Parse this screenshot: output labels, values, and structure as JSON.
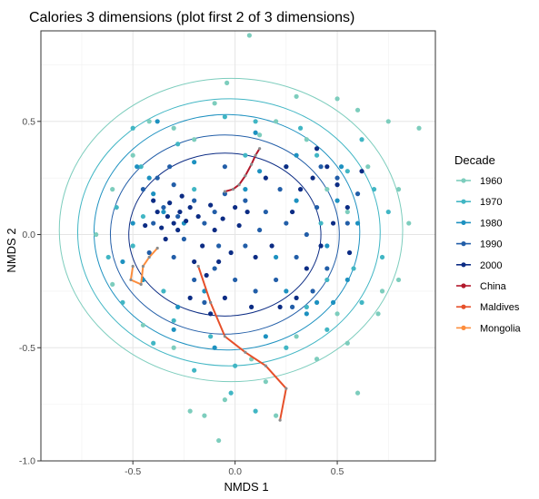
{
  "chart_data": {
    "type": "scatter",
    "title": "Calories 3 dimensions (plot first 2 of 3 dimensions)",
    "xlabel": "NMDS 1",
    "ylabel": "NMDS 2",
    "xlim": [
      -0.95,
      0.98
    ],
    "ylim": [
      -1.0,
      0.9
    ],
    "x_ticks": [
      -0.5,
      0.0,
      0.5
    ],
    "x_tick_labels": [
      "-0.5",
      "0.0",
      "0.5"
    ],
    "y_ticks": [
      -1.0,
      -0.5,
      0.0,
      0.5
    ],
    "y_tick_labels": [
      "-1.0",
      "-0.5",
      "0.0",
      "0.5"
    ],
    "grid": true,
    "legend": {
      "title": "Decade",
      "placement": "right",
      "entries": [
        {
          "label": "1960",
          "color": "#7dcdbd"
        },
        {
          "label": "1970",
          "color": "#41b6c4"
        },
        {
          "label": "1980",
          "color": "#1d91c0"
        },
        {
          "label": "1990",
          "color": "#225ea8"
        },
        {
          "label": "2000",
          "color": "#0c2c84"
        },
        {
          "label": "China",
          "color": "#b2182b"
        },
        {
          "label": "Maldives",
          "color": "#e6502a"
        },
        {
          "label": "Mongolia",
          "color": "#fd8d3c"
        }
      ]
    },
    "ellipses": [
      {
        "decade": "1960",
        "color": "#7dcdbd",
        "cx": -0.02,
        "cy": 0.02,
        "rx": 0.84,
        "ry": 0.67
      },
      {
        "decade": "1970",
        "color": "#41b6c4",
        "cx": -0.03,
        "cy": 0.01,
        "rx": 0.74,
        "ry": 0.59
      },
      {
        "decade": "1980",
        "color": "#1d91c0",
        "cx": -0.04,
        "cy": 0.01,
        "rx": 0.65,
        "ry": 0.52
      },
      {
        "decade": "1990",
        "color": "#225ea8",
        "cx": -0.05,
        "cy": 0.0,
        "rx": 0.56,
        "ry": 0.44
      },
      {
        "decade": "2000",
        "color": "#0c2c84",
        "cx": -0.05,
        "cy": 0.0,
        "rx": 0.47,
        "ry": 0.36
      }
    ],
    "series": [
      {
        "name": "1960",
        "color": "#7dcdbd",
        "points": [
          [
            0.07,
            0.88
          ],
          [
            -0.04,
            0.67
          ],
          [
            0.3,
            0.61
          ],
          [
            0.5,
            0.6
          ],
          [
            0.75,
            0.5
          ],
          [
            0.9,
            0.47
          ],
          [
            0.6,
            0.55
          ],
          [
            -0.1,
            0.58
          ],
          [
            0.2,
            0.5
          ],
          [
            -0.3,
            0.47
          ],
          [
            0.35,
            0.42
          ],
          [
            0.65,
            0.3
          ],
          [
            0.8,
            0.2
          ],
          [
            0.85,
            0.05
          ],
          [
            0.8,
            -0.2
          ],
          [
            0.7,
            -0.35
          ],
          [
            0.55,
            -0.48
          ],
          [
            0.4,
            -0.55
          ],
          [
            0.15,
            -0.65
          ],
          [
            -0.05,
            -0.73
          ],
          [
            -0.15,
            -0.8
          ],
          [
            -0.08,
            -0.91
          ],
          [
            -0.22,
            -0.78
          ],
          [
            0.6,
            -0.7
          ],
          [
            -0.5,
            0.35
          ],
          [
            -0.6,
            0.2
          ],
          [
            -0.68,
            0.0
          ],
          [
            -0.6,
            -0.22
          ],
          [
            -0.45,
            -0.4
          ],
          [
            -0.3,
            -0.5
          ],
          [
            0.08,
            -0.55
          ],
          [
            0.3,
            -0.45
          ],
          [
            0.5,
            -0.35
          ],
          [
            -0.42,
            0.5
          ],
          [
            0.2,
            -0.8
          ],
          [
            0.45,
            0.2
          ],
          [
            0.55,
            0.1
          ],
          [
            -0.2,
            0.42
          ],
          [
            0.12,
            0.44
          ],
          [
            0.72,
            -0.25
          ]
        ]
      },
      {
        "name": "1970",
        "color": "#41b6c4",
        "points": [
          [
            -0.5,
            0.47
          ],
          [
            -0.05,
            0.52
          ],
          [
            0.1,
            0.5
          ],
          [
            0.32,
            0.47
          ],
          [
            0.62,
            0.42
          ],
          [
            0.68,
            0.2
          ],
          [
            0.75,
            0.1
          ],
          [
            0.72,
            -0.1
          ],
          [
            0.62,
            -0.3
          ],
          [
            0.45,
            -0.42
          ],
          [
            0.25,
            -0.5
          ],
          [
            0.0,
            -0.58
          ],
          [
            -0.2,
            -0.6
          ],
          [
            -0.4,
            -0.48
          ],
          [
            -0.55,
            -0.3
          ],
          [
            -0.62,
            -0.1
          ],
          [
            -0.58,
            0.12
          ],
          [
            -0.46,
            0.3
          ],
          [
            -0.28,
            0.4
          ],
          [
            0.1,
            -0.78
          ],
          [
            -0.02,
            -0.7
          ],
          [
            0.4,
            0.35
          ],
          [
            0.55,
            0.28
          ],
          [
            0.58,
            -0.15
          ],
          [
            0.35,
            -0.32
          ],
          [
            -0.12,
            -0.45
          ],
          [
            -0.35,
            -0.25
          ],
          [
            -0.45,
            0.08
          ],
          [
            0.05,
            0.35
          ],
          [
            0.25,
            0.3
          ],
          [
            -0.2,
            0.2
          ],
          [
            0.42,
            0.05
          ],
          [
            0.45,
            -0.2
          ],
          [
            -0.3,
            -0.38
          ],
          [
            -0.5,
            -0.05
          ]
        ]
      },
      {
        "name": "1980",
        "color": "#1d91c0",
        "points": [
          [
            -0.38,
            0.5
          ],
          [
            0.1,
            0.45
          ],
          [
            0.3,
            0.35
          ],
          [
            0.52,
            0.3
          ],
          [
            0.6,
            0.05
          ],
          [
            0.55,
            -0.2
          ],
          [
            0.4,
            -0.3
          ],
          [
            0.15,
            -0.45
          ],
          [
            -0.1,
            -0.5
          ],
          [
            -0.3,
            -0.42
          ],
          [
            -0.45,
            -0.2
          ],
          [
            -0.5,
            0.05
          ],
          [
            -0.42,
            0.25
          ],
          [
            -0.2,
            0.32
          ],
          [
            0.3,
            0.15
          ],
          [
            0.45,
            -0.05
          ],
          [
            -0.25,
            0.05
          ],
          [
            -0.35,
            0.1
          ],
          [
            0.2,
            -0.1
          ],
          [
            0.35,
            -0.35
          ],
          [
            -0.15,
            -0.25
          ],
          [
            -0.4,
            0.18
          ],
          [
            0.05,
            0.2
          ],
          [
            0.25,
            -0.25
          ],
          [
            0.5,
            0.15
          ],
          [
            -0.55,
            -0.12
          ],
          [
            -0.28,
            -0.32
          ],
          [
            0.12,
            0.28
          ],
          [
            0.48,
            -0.3
          ],
          [
            -0.48,
            0.3
          ]
        ]
      },
      {
        "name": "1990",
        "color": "#225ea8",
        "points": [
          [
            -0.3,
            0.22
          ],
          [
            -0.35,
            0.12
          ],
          [
            -0.4,
            0.05
          ],
          [
            -0.28,
            0.08
          ],
          [
            -0.2,
            0.15
          ],
          [
            -0.15,
            0.05
          ],
          [
            -0.1,
            0.1
          ],
          [
            -0.05,
            0.18
          ],
          [
            0.05,
            0.15
          ],
          [
            0.15,
            0.1
          ],
          [
            0.25,
            0.05
          ],
          [
            0.35,
            0.0
          ],
          [
            0.4,
            0.12
          ],
          [
            0.3,
            -0.1
          ],
          [
            0.2,
            -0.2
          ],
          [
            0.1,
            -0.25
          ],
          [
            0.0,
            -0.2
          ],
          [
            -0.1,
            -0.15
          ],
          [
            -0.2,
            -0.2
          ],
          [
            -0.3,
            -0.1
          ],
          [
            -0.25,
            -0.02
          ],
          [
            -0.45,
            0.2
          ],
          [
            -0.38,
            0.25
          ],
          [
            0.5,
            0.25
          ],
          [
            0.55,
            0.05
          ],
          [
            0.45,
            -0.15
          ],
          [
            0.38,
            -0.25
          ],
          [
            -0.15,
            -0.3
          ],
          [
            0.05,
            -0.05
          ],
          [
            0.12,
            0.02
          ],
          [
            -0.08,
            -0.05
          ],
          [
            0.22,
            0.2
          ],
          [
            -0.32,
            0.3
          ],
          [
            0.28,
            -0.32
          ],
          [
            -0.05,
            0.3
          ],
          [
            0.42,
            0.3
          ],
          [
            0.6,
            0.18
          ],
          [
            -0.42,
            -0.08
          ]
        ]
      },
      {
        "name": "2000",
        "color": "#0c2c84",
        "points": [
          [
            -0.38,
            0.1
          ],
          [
            -0.33,
            0.08
          ],
          [
            -0.3,
            0.05
          ],
          [
            -0.27,
            0.1
          ],
          [
            -0.24,
            0.06
          ],
          [
            -0.36,
            0.03
          ],
          [
            -0.32,
            0.14
          ],
          [
            -0.28,
            0.02
          ],
          [
            -0.22,
            0.12
          ],
          [
            -0.18,
            0.08
          ],
          [
            -0.4,
            0.15
          ],
          [
            -0.26,
            0.17
          ],
          [
            -0.34,
            -0.02
          ],
          [
            -0.12,
            0.13
          ],
          [
            -0.06,
            0.07
          ],
          [
            0.0,
            0.12
          ],
          [
            0.06,
            0.1
          ],
          [
            -0.1,
            0.02
          ],
          [
            0.02,
            0.04
          ],
          [
            -0.02,
            -0.08
          ],
          [
            -0.08,
            -0.12
          ],
          [
            -0.14,
            -0.18
          ],
          [
            -0.2,
            -0.12
          ],
          [
            0.1,
            -0.1
          ],
          [
            0.18,
            -0.05
          ],
          [
            0.28,
            0.1
          ],
          [
            0.32,
            0.2
          ],
          [
            0.38,
            0.25
          ],
          [
            0.45,
            0.3
          ],
          [
            0.5,
            0.22
          ],
          [
            0.55,
            0.12
          ],
          [
            0.48,
            0.05
          ],
          [
            0.42,
            -0.05
          ],
          [
            0.35,
            -0.15
          ],
          [
            0.3,
            -0.28
          ],
          [
            0.22,
            -0.32
          ],
          [
            -0.05,
            -0.28
          ],
          [
            -0.12,
            -0.35
          ],
          [
            -0.22,
            -0.28
          ],
          [
            0.15,
            0.25
          ],
          [
            0.25,
            0.3
          ],
          [
            0.62,
            0.28
          ],
          [
            -0.44,
            0.04
          ],
          [
            -0.16,
            -0.05
          ],
          [
            0.08,
            -0.32
          ],
          [
            0.4,
            0.38
          ],
          [
            0.56,
            -0.08
          ]
        ]
      }
    ],
    "trajectories": [
      {
        "name": "China",
        "color": "#b2182b",
        "points": [
          [
            -0.05,
            0.19
          ],
          [
            -0.01,
            0.2
          ],
          [
            0.02,
            0.22
          ],
          [
            0.05,
            0.26
          ],
          [
            0.08,
            0.31
          ],
          [
            0.1,
            0.35
          ],
          [
            0.12,
            0.38
          ]
        ]
      },
      {
        "name": "Maldives",
        "color": "#e6502a",
        "points": [
          [
            -0.18,
            -0.14
          ],
          [
            -0.12,
            -0.3
          ],
          [
            -0.05,
            -0.45
          ],
          [
            0.05,
            -0.52
          ],
          [
            0.15,
            -0.58
          ],
          [
            0.25,
            -0.68
          ],
          [
            0.22,
            -0.82
          ]
        ]
      },
      {
        "name": "Mongolia",
        "color": "#fd8d3c",
        "points": [
          [
            -0.5,
            -0.14
          ],
          [
            -0.51,
            -0.2
          ],
          [
            -0.46,
            -0.22
          ],
          [
            -0.45,
            -0.14
          ],
          [
            -0.42,
            -0.1
          ],
          [
            -0.38,
            -0.06
          ]
        ]
      }
    ]
  }
}
